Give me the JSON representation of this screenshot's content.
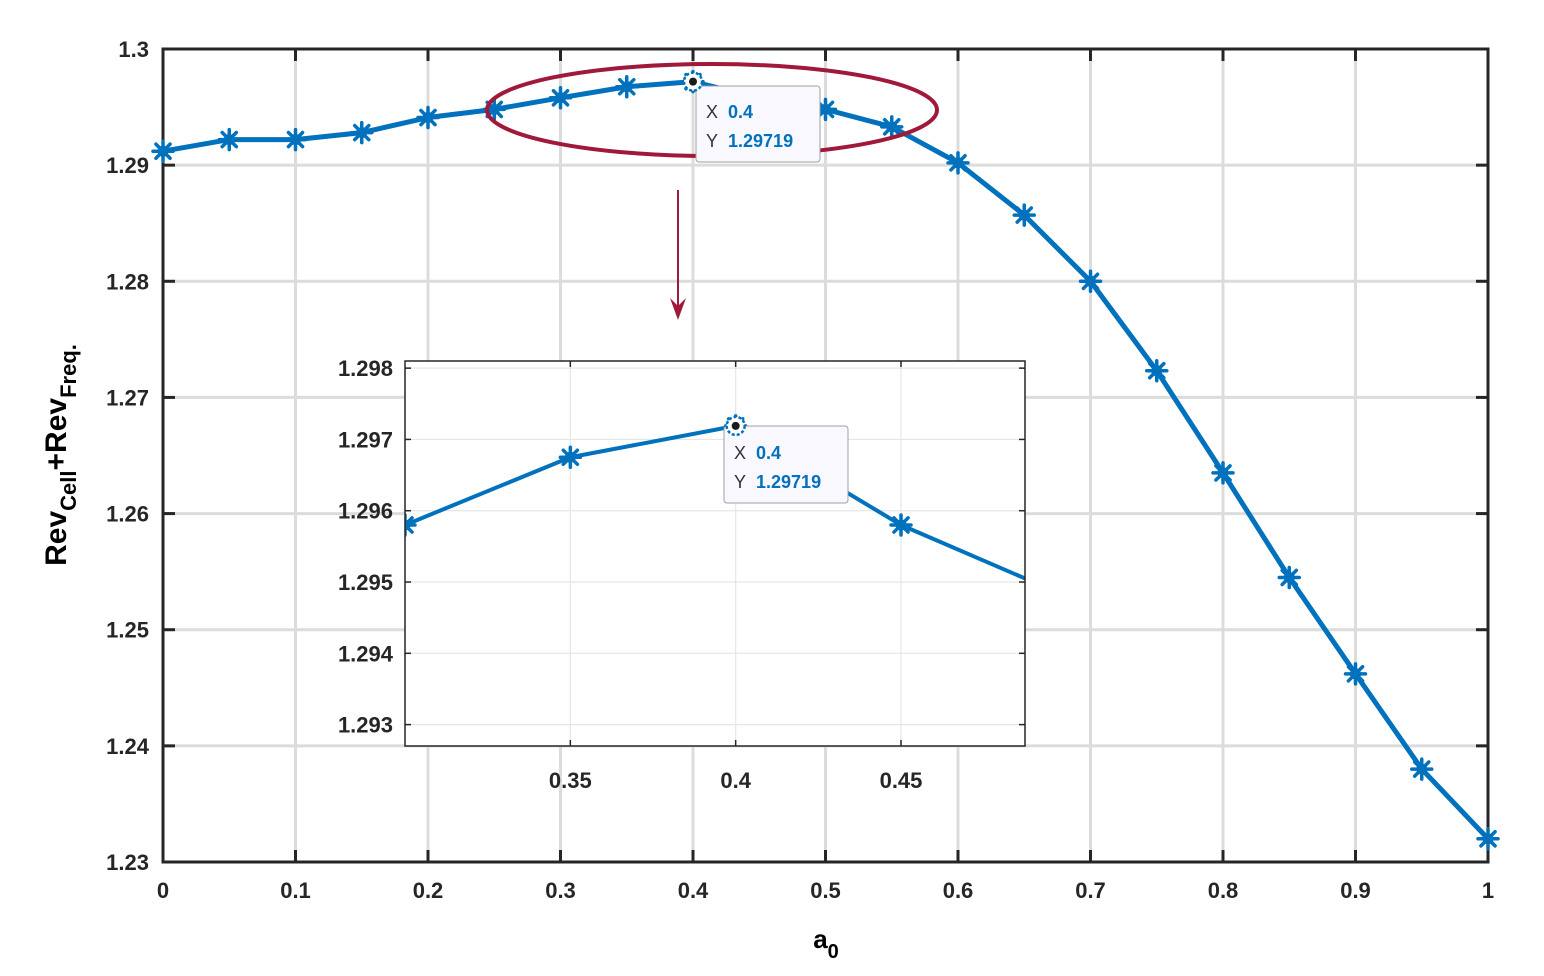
{
  "chart_data": [
    {
      "type": "line",
      "role": "main",
      "xlabel": "a",
      "xlabel_sub": "0",
      "ylabel_parts": [
        "Rev",
        "Cell",
        "+Rev",
        "Freq."
      ],
      "xlim": [
        0,
        1
      ],
      "ylim": [
        1.23,
        1.3
      ],
      "grid": true,
      "x_ticks": [
        "0",
        "0.1",
        "0.2",
        "0.3",
        "0.4",
        "0.5",
        "0.6",
        "0.7",
        "0.8",
        "0.9",
        "1"
      ],
      "y_ticks": [
        "1.23",
        "1.24",
        "1.25",
        "1.26",
        "1.27",
        "1.28",
        "1.29",
        "1.3"
      ],
      "series": [
        {
          "color": "#0072bd",
          "marker": "asterisk",
          "x": [
            0,
            0.05,
            0.1,
            0.15,
            0.2,
            0.25,
            0.3,
            0.35,
            0.4,
            0.45,
            0.5,
            0.55,
            0.6,
            0.65,
            0.7,
            0.75,
            0.8,
            0.85,
            0.9,
            0.95,
            1.0
          ],
          "y": [
            1.2912,
            1.2922,
            1.2922,
            1.2928,
            1.2941,
            1.2948,
            1.2958,
            1.29675,
            1.29719,
            1.2958,
            1.2948,
            1.2933,
            1.2902,
            1.2857,
            1.28,
            1.2723,
            1.2635,
            1.2545,
            1.2462,
            1.238,
            1.232
          ]
        }
      ],
      "datatip": {
        "x_label": "X",
        "x_value": "0.4",
        "y_label": "Y",
        "y_value": "1.29719"
      },
      "annotation": {
        "shape": "ellipse-with-arrow",
        "color": "#a0183a"
      }
    },
    {
      "type": "line",
      "role": "inset",
      "xlim": [
        0.3,
        0.4875
      ],
      "ylim": [
        1.2927,
        1.2981
      ],
      "grid": true,
      "x_ticks": [
        "0.35",
        "0.4",
        "0.45"
      ],
      "y_ticks": [
        "1.293",
        "1.294",
        "1.295",
        "1.296",
        "1.297",
        "1.298"
      ],
      "series": [
        {
          "color": "#0072bd",
          "marker": "asterisk",
          "x": [
            0.25,
            0.3,
            0.35,
            0.4,
            0.45,
            0.5
          ],
          "y": [
            1.2948,
            1.2958,
            1.29675,
            1.29719,
            1.2958,
            1.2948
          ]
        }
      ],
      "datatip": {
        "x_label": "X",
        "x_value": "0.4",
        "y_label": "Y",
        "y_value": "1.29719"
      }
    }
  ]
}
